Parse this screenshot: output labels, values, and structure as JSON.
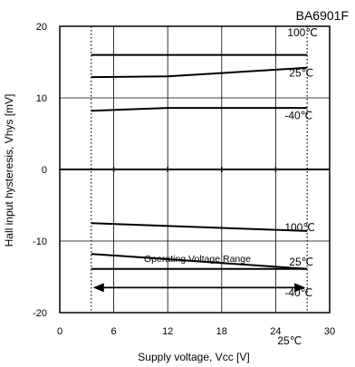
{
  "chart_data": {
    "type": "line",
    "title": "BA6901F",
    "xlabel": "Supply voltage, Vcc [V]",
    "ylabel": "Hall input hysteresis, Vhys [mV]",
    "xlim": [
      0,
      30
    ],
    "ylim": [
      -20,
      20
    ],
    "x_ticks": [
      0,
      6,
      12,
      18,
      24,
      30
    ],
    "x_tick_labels": [
      "0",
      "6",
      "12",
      "18",
      "24",
      "30"
    ],
    "y_ticks": [
      -20,
      -10,
      0,
      10,
      20
    ],
    "y_tick_labels": [
      "-20",
      "-10",
      "0",
      "10",
      "20"
    ],
    "grid": true,
    "operating_range": {
      "label": "Operating Voltage Range",
      "x": [
        3.5,
        27.5
      ]
    },
    "series": [
      {
        "name": "100°C",
        "x": [
          3.5,
          27.5
        ],
        "y": [
          16,
          16
        ]
      },
      {
        "name": "25°C",
        "x": [
          3.5,
          12,
          27.5
        ],
        "y": [
          12.9,
          13.0,
          14.2
        ]
      },
      {
        "name": "-40°C",
        "x": [
          3.5,
          12,
          27.5
        ],
        "y": [
          8.2,
          8.6,
          8.6
        ]
      },
      {
        "name": "100°C",
        "x": [
          3.5,
          27.5
        ],
        "y": [
          -7.5,
          -8.6
        ]
      },
      {
        "name": "25°C",
        "x": [
          3.5,
          27.5
        ],
        "y": [
          -11.8,
          -13.9
        ]
      },
      {
        "name": "-40°C",
        "x": [
          3.5,
          27.5
        ],
        "y": [
          -13.9,
          -13.9
        ]
      }
    ],
    "annotations": [
      {
        "text": "100℃",
        "x": 25.3,
        "y": 18.6
      },
      {
        "text": "25℃",
        "x": 25.5,
        "y": 13.0
      },
      {
        "text": "-40℃",
        "x": 25.0,
        "y": 7.0
      },
      {
        "text": "100℃",
        "x": 25.0,
        "y": -8.6
      },
      {
        "text": "25℃",
        "x": 25.5,
        "y": -13.4
      },
      {
        "text": "-40℃",
        "x": 25.0,
        "y": -17.7
      },
      {
        "text": "25℃",
        "x": 24.2,
        "y": -24.4
      }
    ],
    "colors": {
      "line": "#000000",
      "grid": "#000000",
      "background": "#ffffff"
    }
  }
}
